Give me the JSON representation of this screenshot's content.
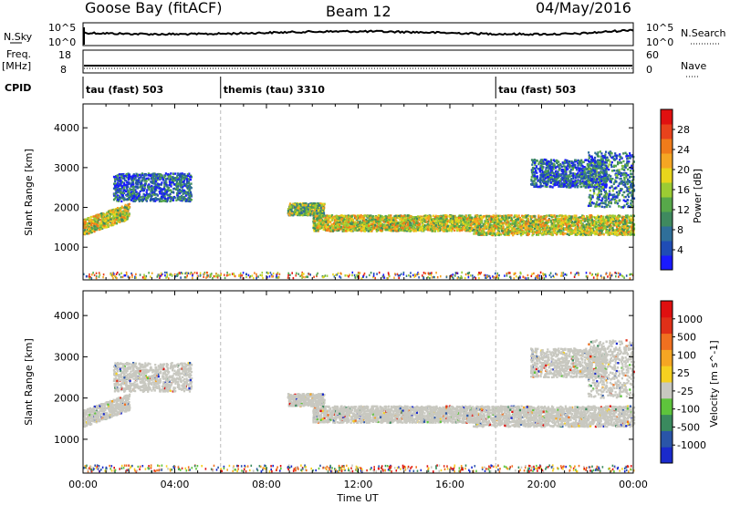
{
  "header": {
    "station": "Goose Bay (fitACF)",
    "beam": "Beam 12",
    "date": "04/May/2016"
  },
  "noise_panel": {
    "left_label": "N.Sky",
    "right_label": "N.Search",
    "tick_top_left": "10^5",
    "tick_bottom_left": "10^0",
    "tick_top_right": "10^5",
    "tick_bottom_right": "10^0"
  },
  "freq_panel": {
    "left_label_1": "Freq.",
    "left_label_2": "[MHz]",
    "right_label": "Nave",
    "tick_top_left": "18",
    "tick_bottom_left": "8",
    "tick_top_right": "60",
    "tick_bottom_right": "0"
  },
  "cpid": {
    "label": "CPID",
    "segments": [
      {
        "label": "tau (fast) 503",
        "start_hour": 0
      },
      {
        "label": "themis (tau) 3310",
        "start_hour": 6
      },
      {
        "label": "tau (fast) 503",
        "start_hour": 18
      }
    ]
  },
  "chart_data": [
    {
      "type": "heatmap",
      "name": "power",
      "ylabel": "Slant Range [km]",
      "xlim": [
        0,
        24
      ],
      "ylim": [
        180,
        4600
      ],
      "yticks": [
        "1000",
        "2000",
        "3000",
        "4000"
      ],
      "ytick_values": [
        1000,
        2000,
        3000,
        4000
      ],
      "colorbar": {
        "label": "Power [dB]",
        "tick_labels": [
          "4",
          "8",
          "12",
          "16",
          "20",
          "24",
          "28"
        ],
        "colors": [
          "#1a1aff",
          "#1f4cb5",
          "#2f6f9a",
          "#3f8a5f",
          "#57a84a",
          "#9ccc33",
          "#e8d51c",
          "#f5a623",
          "#f07b1a",
          "#e8421c",
          "#e01010"
        ]
      },
      "scatter_bands": [
        {
          "t0": 0.0,
          "t1": 2.0,
          "r0": 1300,
          "r1": 1700,
          "rise": 400,
          "level": 0.55
        },
        {
          "t0": 1.3,
          "t1": 4.7,
          "r0": 2150,
          "r1": 2850,
          "rise": 0,
          "level": 0.2
        },
        {
          "t0": 8.9,
          "t1": 10.5,
          "r0": 2100,
          "r1": 1800,
          "rise": 0,
          "level": 0.45
        },
        {
          "t0": 10.0,
          "t1": 17.0,
          "r0": 1400,
          "r1": 1800,
          "rise": 0,
          "level": 0.55
        },
        {
          "t0": 17.0,
          "t1": 24.0,
          "r0": 1300,
          "r1": 1800,
          "rise": 0,
          "level": 0.55
        },
        {
          "t0": 19.5,
          "t1": 22.8,
          "r0": 2500,
          "r1": 3200,
          "rise": 0,
          "level": 0.2
        },
        {
          "t0": 22.0,
          "t1": 24.0,
          "r0": 2000,
          "r1": 3400,
          "rise": 0,
          "level": 0.25
        }
      ]
    },
    {
      "type": "heatmap",
      "name": "velocity",
      "ylabel": "Slant Range [km]",
      "xlabel": "Time UT",
      "xlim": [
        0,
        24
      ],
      "ylim": [
        180,
        4600
      ],
      "xticks": [
        "00:00",
        "04:00",
        "08:00",
        "12:00",
        "16:00",
        "20:00",
        "00:00"
      ],
      "xtick_values": [
        0,
        4,
        8,
        12,
        16,
        20,
        24
      ],
      "yticks": [
        "1000",
        "2000",
        "3000",
        "4000"
      ],
      "ytick_values": [
        1000,
        2000,
        3000,
        4000
      ],
      "colorbar": {
        "label": "Velocity [m s^-1]",
        "tick_labels": [
          "1000",
          "500",
          "100",
          "25",
          "-25",
          "-100",
          "-500",
          "-1000"
        ],
        "colors": [
          "#1a2acc",
          "#2a55a8",
          "#3a8a5e",
          "#5ec43c",
          "#c8c8c0",
          "#f5d020",
          "#f5a623",
          "#f07020",
          "#e03018",
          "#e01010"
        ]
      },
      "ground_scatter_color": "#c8c8c0"
    }
  ]
}
